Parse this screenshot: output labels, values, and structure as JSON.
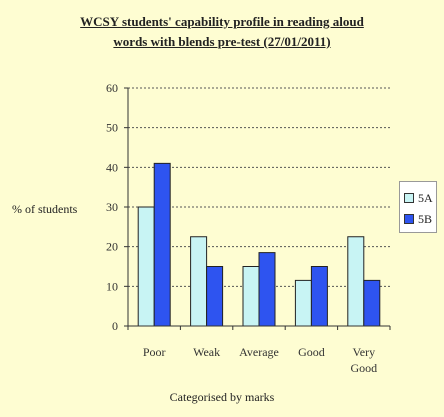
{
  "chart_data": {
    "type": "bar",
    "title": [
      "WCSY students' capability profile in reading aloud",
      "words with blends pre-test (27/01/2011)"
    ],
    "xlabel": "Categorised by marks",
    "ylabel": "% of students",
    "categories": [
      "Poor",
      "Weak",
      "Average",
      "Good",
      "Very Good"
    ],
    "category_lines": [
      [
        "Poor"
      ],
      [
        "Weak"
      ],
      [
        "Average"
      ],
      [
        "Good"
      ],
      [
        "Very",
        "Good"
      ]
    ],
    "series": [
      {
        "name": "5A",
        "values": [
          30,
          22.5,
          15,
          11.5,
          22.5
        ],
        "color": "#c8f4f4"
      },
      {
        "name": "5B",
        "values": [
          41,
          15,
          18.5,
          15,
          11.5
        ],
        "color": "#2e54f0"
      }
    ],
    "ylim": [
      0,
      60
    ],
    "yticks": [
      0,
      10,
      20,
      30,
      40,
      50,
      60
    ],
    "grid": true,
    "legend": "right"
  }
}
